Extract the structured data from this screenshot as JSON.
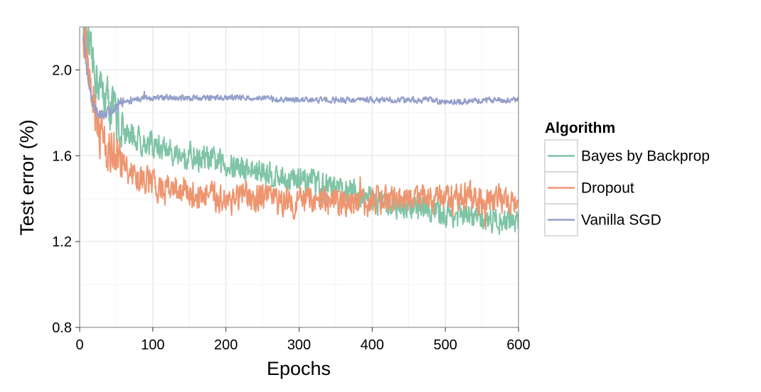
{
  "chart_data": {
    "type": "line",
    "title": "",
    "xlabel": "Epochs",
    "ylabel": "Test error (%)",
    "xlim": [
      0,
      600
    ],
    "ylim": [
      0.8,
      2.2
    ],
    "xticks": [
      0,
      100,
      200,
      300,
      400,
      500,
      600
    ],
    "xtick_labels": [
      "0",
      "100",
      "200",
      "300",
      "400",
      "500",
      "600"
    ],
    "yticks": [
      0.8,
      1.2,
      1.6,
      2.0
    ],
    "ytick_labels": [
      "0.8",
      "1.2",
      "1.6",
      "2.0"
    ],
    "grid": true,
    "legend": {
      "title": "Algorithm",
      "position": "right"
    },
    "series": [
      {
        "name": "Bayes by Backprop",
        "color": "#7fc4a6",
        "x": [
          5,
          10,
          15,
          20,
          25,
          30,
          40,
          50,
          60,
          75,
          100,
          125,
          150,
          175,
          200,
          225,
          250,
          275,
          300,
          325,
          350,
          375,
          400,
          425,
          450,
          475,
          500,
          525,
          550,
          575,
          600
        ],
        "y": [
          2.2,
          2.1,
          2.05,
          2.0,
          1.95,
          1.9,
          1.85,
          1.78,
          1.72,
          1.68,
          1.65,
          1.62,
          1.6,
          1.58,
          1.56,
          1.54,
          1.52,
          1.5,
          1.48,
          1.46,
          1.44,
          1.42,
          1.4,
          1.38,
          1.36,
          1.35,
          1.33,
          1.32,
          1.31,
          1.3,
          1.3
        ],
        "noise": 0.055
      },
      {
        "name": "Dropout",
        "color": "#ee9570",
        "x": [
          5,
          10,
          15,
          20,
          25,
          30,
          40,
          50,
          60,
          75,
          100,
          125,
          150,
          175,
          200,
          225,
          250,
          275,
          300,
          325,
          350,
          375,
          400,
          425,
          450,
          475,
          500,
          525,
          550,
          575,
          600
        ],
        "y": [
          2.2,
          2.1,
          1.95,
          1.85,
          1.78,
          1.7,
          1.63,
          1.58,
          1.55,
          1.5,
          1.47,
          1.44,
          1.42,
          1.41,
          1.4,
          1.4,
          1.4,
          1.39,
          1.39,
          1.38,
          1.38,
          1.38,
          1.39,
          1.39,
          1.4,
          1.4,
          1.4,
          1.4,
          1.4,
          1.4,
          1.4
        ],
        "noise": 0.06
      },
      {
        "name": "Vanilla SGD",
        "color": "#949fca",
        "x": [
          5,
          10,
          15,
          20,
          25,
          30,
          40,
          50,
          60,
          75,
          100,
          125,
          150,
          175,
          200,
          225,
          250,
          275,
          300,
          325,
          350,
          375,
          400,
          425,
          450,
          475,
          500,
          525,
          550,
          575,
          600
        ],
        "y": [
          2.15,
          1.98,
          1.88,
          1.83,
          1.8,
          1.79,
          1.8,
          1.83,
          1.85,
          1.86,
          1.87,
          1.87,
          1.87,
          1.87,
          1.87,
          1.87,
          1.87,
          1.86,
          1.86,
          1.86,
          1.86,
          1.86,
          1.86,
          1.86,
          1.86,
          1.86,
          1.85,
          1.85,
          1.86,
          1.86,
          1.86
        ],
        "noise": 0.012
      }
    ]
  }
}
